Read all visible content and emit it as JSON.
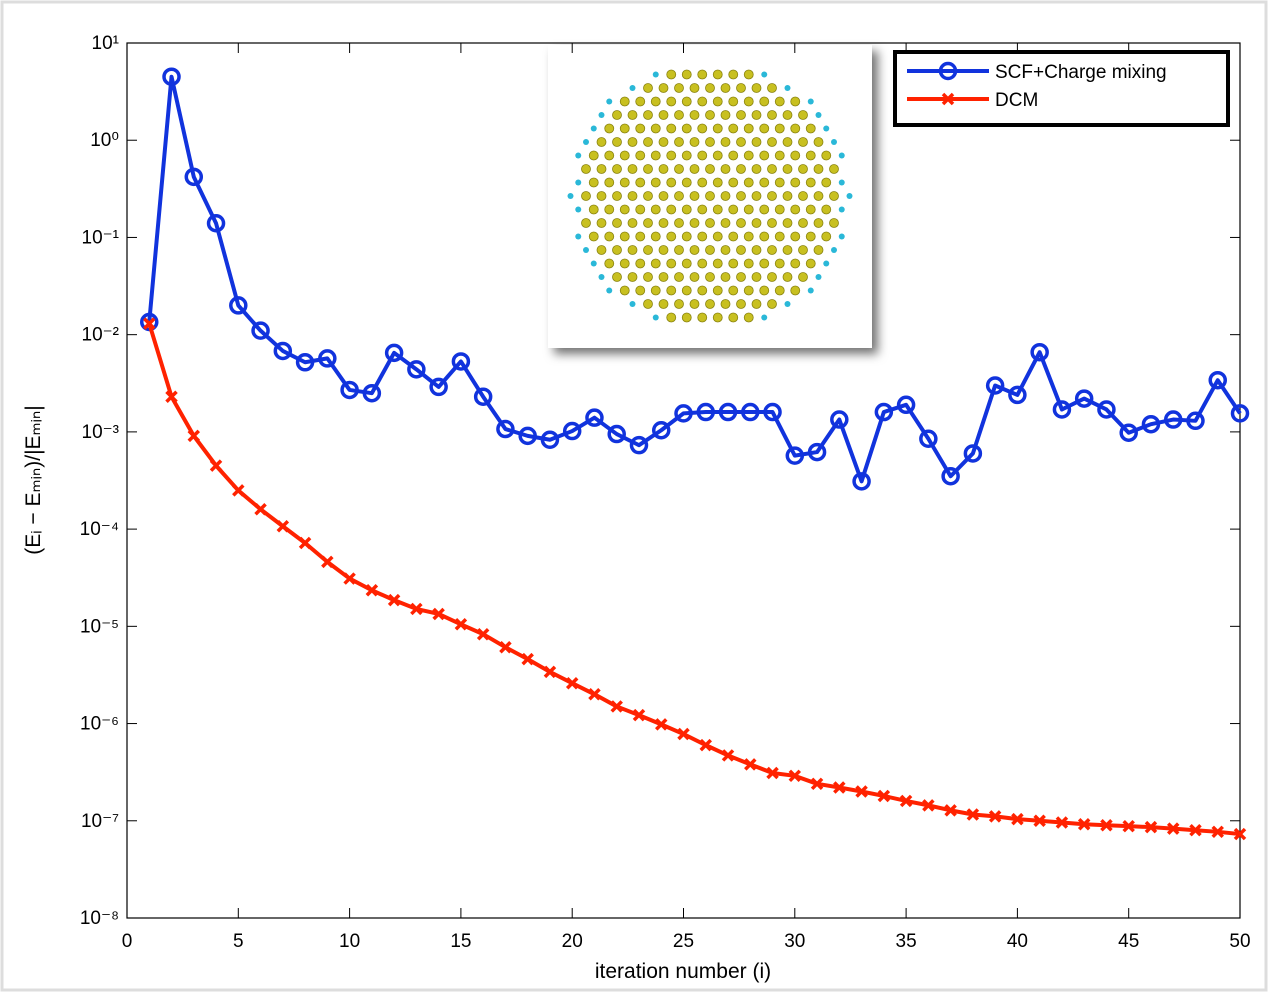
{
  "chart_data": {
    "type": "line",
    "log_y": true,
    "x_label": "iteration number (i)",
    "y_label": "(Eᵢ − Eₘᵢₙ)/|Eₘᵢₙ|",
    "x": [
      1,
      2,
      3,
      4,
      5,
      6,
      7,
      8,
      9,
      10,
      11,
      12,
      13,
      14,
      15,
      16,
      17,
      18,
      19,
      20,
      21,
      22,
      23,
      24,
      25,
      26,
      27,
      28,
      29,
      30,
      31,
      32,
      33,
      34,
      35,
      36,
      37,
      38,
      39,
      40,
      41,
      42,
      43,
      44,
      45,
      46,
      47,
      48,
      49,
      50
    ],
    "series": [
      {
        "name": "SCF+Charge mixing",
        "color": "#1133dd",
        "marker": "circle",
        "values": [
          0.0135,
          4.5,
          0.42,
          0.14,
          0.02,
          0.011,
          0.0068,
          0.0052,
          0.0057,
          0.0027,
          0.0025,
          0.0065,
          0.0044,
          0.0029,
          0.0053,
          0.0023,
          0.00107,
          0.00091,
          0.00083,
          0.00102,
          0.0014,
          0.00095,
          0.00073,
          0.00104,
          0.00155,
          0.0016,
          0.0016,
          0.0016,
          0.0016,
          0.00057,
          0.00062,
          0.00134,
          0.00031,
          0.0016,
          0.0019,
          0.00085,
          0.00035,
          0.0006,
          0.003,
          0.0024,
          0.0066,
          0.0017,
          0.0022,
          0.0017,
          0.00098,
          0.0012,
          0.00134,
          0.0013,
          0.0034,
          0.00155
        ]
      },
      {
        "name": "DCM",
        "color": "#ff2200",
        "marker": "x",
        "values": [
          0.013,
          0.0023,
          0.00091,
          0.00045,
          0.00025,
          0.00016,
          0.000107,
          7.2e-05,
          4.6e-05,
          3.1e-05,
          2.35e-05,
          1.86e-05,
          1.51e-05,
          1.34e-05,
          1.05e-05,
          8.3e-06,
          6.1e-06,
          4.6e-06,
          3.4e-06,
          2.6e-06,
          2e-06,
          1.5e-06,
          1.22e-06,
          9.8e-07,
          7.8e-07,
          6e-07,
          4.7e-07,
          3.8e-07,
          3.1e-07,
          2.9e-07,
          2.4e-07,
          2.2e-07,
          2e-07,
          1.8e-07,
          1.6e-07,
          1.44e-07,
          1.28e-07,
          1.16e-07,
          1.11e-07,
          1.04e-07,
          1e-07,
          9.6e-08,
          9.2e-08,
          9e-08,
          8.8e-08,
          8.6e-08,
          8.3e-08,
          8e-08,
          7.7e-08,
          7.3e-08
        ]
      }
    ],
    "xlim": [
      0,
      50
    ],
    "xticks": [
      0,
      5,
      10,
      15,
      20,
      25,
      30,
      35,
      40,
      45,
      50
    ],
    "ylim": [
      1e-08,
      10
    ],
    "yticks": [
      {
        "value": 1e-08,
        "label": "10⁻⁸"
      },
      {
        "value": 1e-07,
        "label": "10⁻⁷"
      },
      {
        "value": 1e-06,
        "label": "10⁻⁶"
      },
      {
        "value": 1e-05,
        "label": "10⁻⁵"
      },
      {
        "value": 0.0001,
        "label": "10⁻⁴"
      },
      {
        "value": 0.001,
        "label": "10⁻³"
      },
      {
        "value": 0.01,
        "label": "10⁻²"
      },
      {
        "value": 0.1,
        "label": "10⁻¹"
      },
      {
        "value": 1,
        "label": "10⁰"
      },
      {
        "value": 10,
        "label": "10¹"
      }
    ],
    "legend": "upper right"
  }
}
